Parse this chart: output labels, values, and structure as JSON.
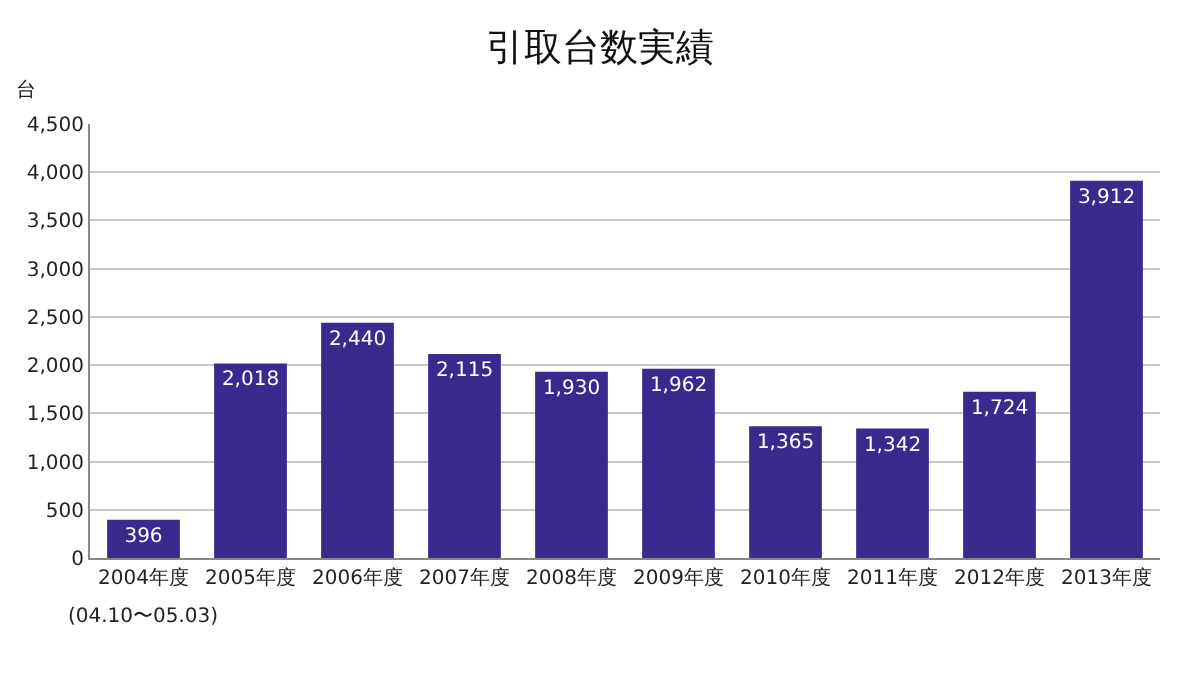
{
  "chart_data": {
    "type": "bar",
    "title": "引取台数実績",
    "ylabel": "台",
    "categories": [
      "2004年度",
      "2005年度",
      "2006年度",
      "2007年度",
      "2008年度",
      "2009年度",
      "2010年度",
      "2011年度",
      "2012年度",
      "2013年度"
    ],
    "values": [
      396,
      2018,
      2440,
      2115,
      1930,
      1962,
      1365,
      1342,
      1724,
      3912
    ],
    "color": "#3b2a8e",
    "value_labels": [
      "396",
      "2,018",
      "2,440",
      "2,115",
      "1,930",
      "1,962",
      "1,365",
      "1,342",
      "1,724",
      "3,912"
    ],
    "ylim": [
      0,
      4500
    ],
    "yticks": [
      0,
      {
        "value": 500,
        "label": "500"
      },
      {
        "value": 1000,
        "label": "1,000"
      },
      {
        "value": 1500,
        "label": "1,500"
      },
      {
        "value": 2000,
        "label": "2,000"
      },
      {
        "value": 2500,
        "label": "2,500"
      },
      {
        "value": 3000,
        "label": "3,000"
      },
      {
        "value": 3500,
        "label": "3,500"
      },
      {
        "value": 4000,
        "label": "4,000"
      },
      {
        "value": 4500,
        "label": "4,500"
      }
    ],
    "grid": true,
    "annotations": [
      "(04.10〜05.03)"
    ]
  }
}
